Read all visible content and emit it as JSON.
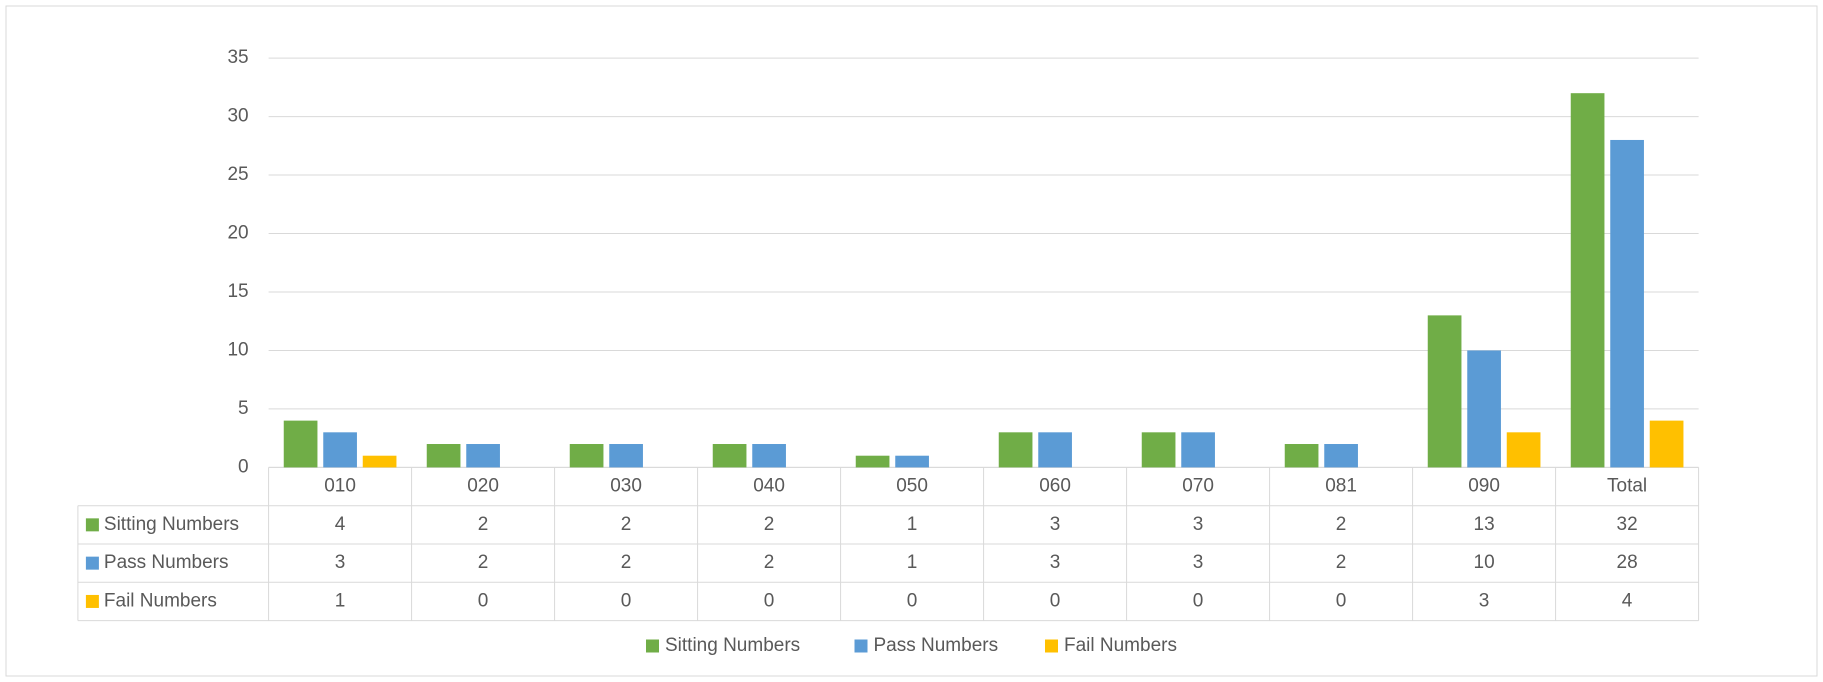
{
  "chart_data": {
    "type": "bar",
    "categories": [
      "010",
      "020",
      "030",
      "040",
      "050",
      "060",
      "070",
      "081",
      "090",
      "Total"
    ],
    "series": [
      {
        "name": "Sitting Numbers",
        "color": "#70ad47",
        "values": [
          4,
          2,
          2,
          2,
          1,
          3,
          3,
          2,
          13,
          32
        ]
      },
      {
        "name": "Pass Numbers",
        "color": "#5b9bd5",
        "values": [
          3,
          2,
          2,
          2,
          1,
          3,
          3,
          2,
          10,
          28
        ]
      },
      {
        "name": "Fail Numbers",
        "color": "#ffc000",
        "values": [
          1,
          0,
          0,
          0,
          0,
          0,
          0,
          0,
          3,
          4
        ]
      }
    ],
    "ylim": [
      0,
      35
    ],
    "yticks": [
      0,
      5,
      10,
      15,
      20,
      25,
      30,
      35
    ],
    "grid": true,
    "legend": "bottom"
  }
}
